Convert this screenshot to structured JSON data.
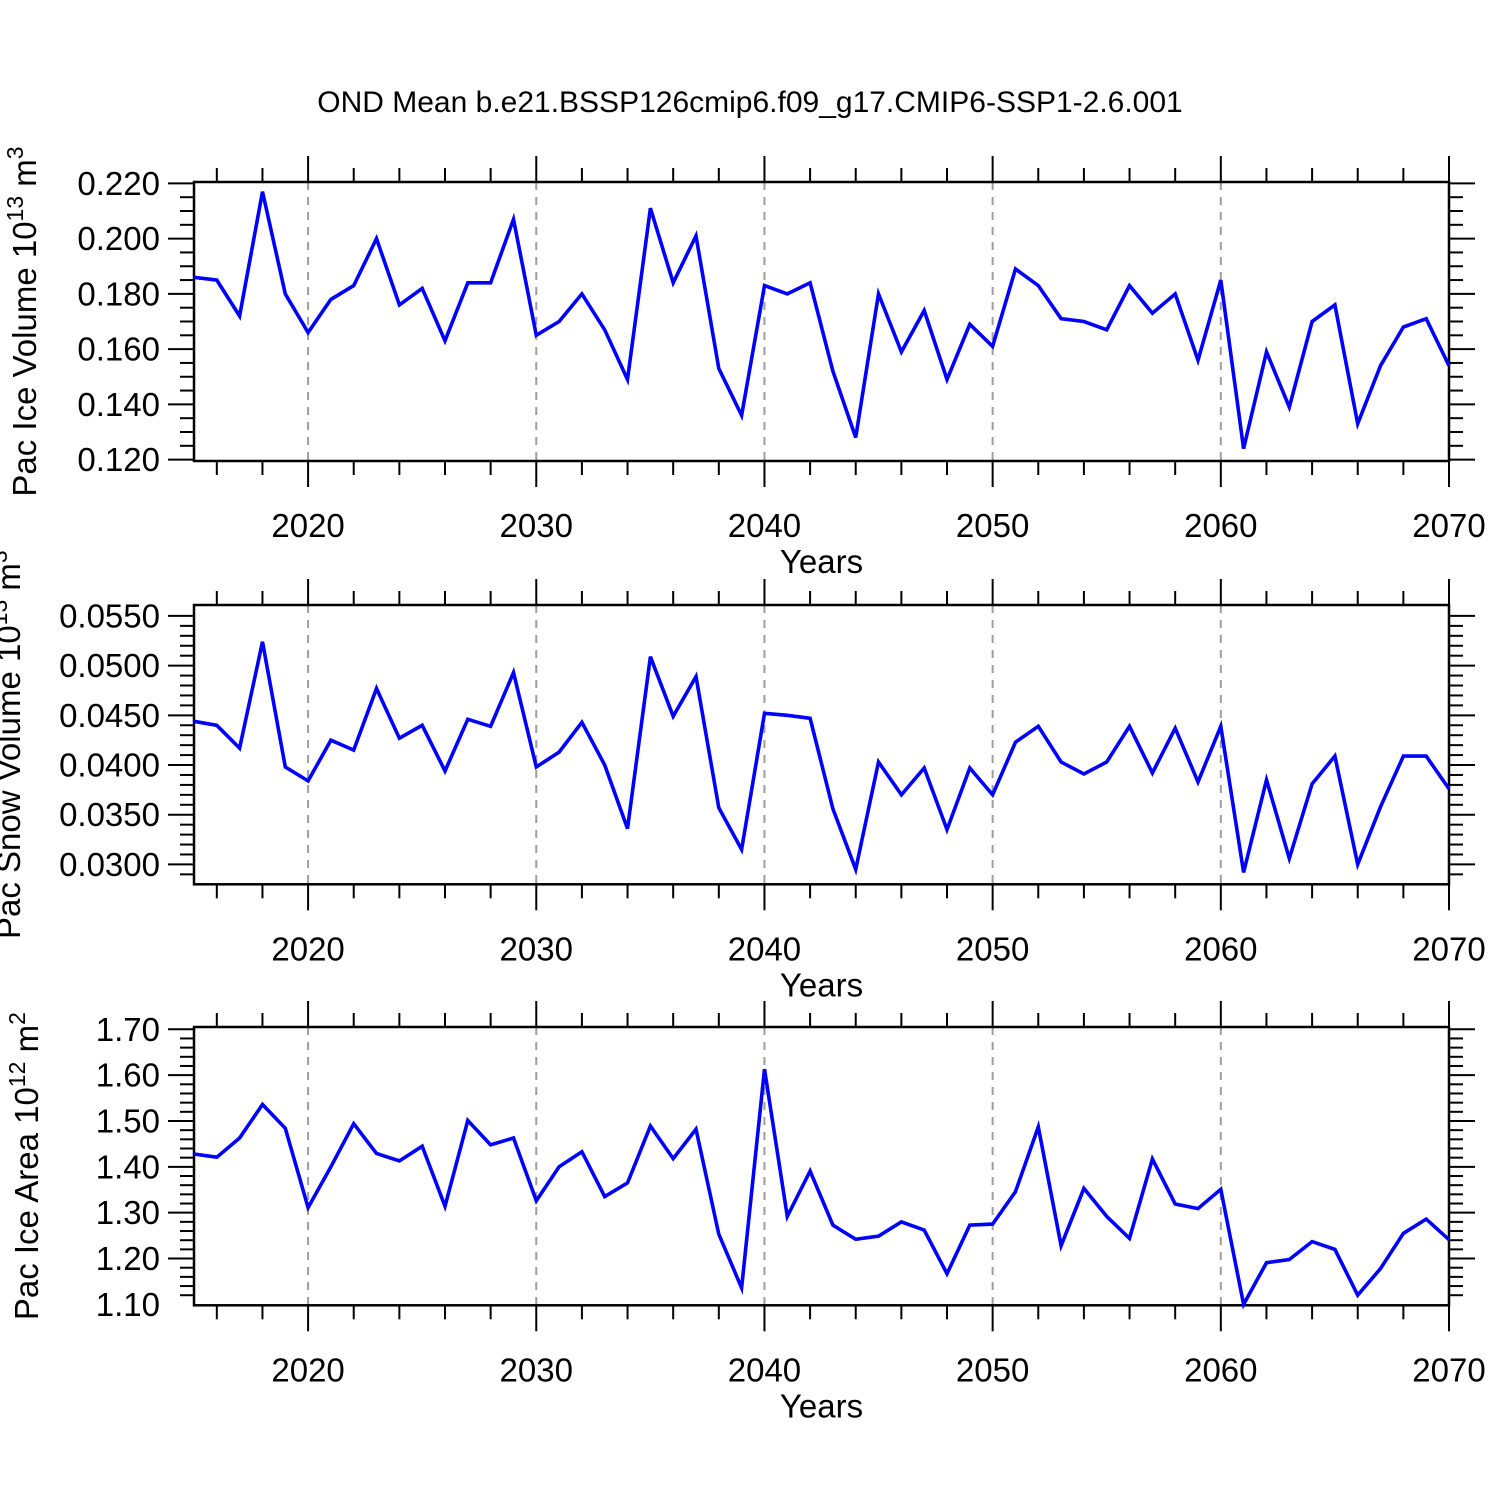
{
  "title": "OND Mean b.e21.BSSP126cmip6.f09_g17.CMIP6-SSP1-2.6.001",
  "colors": {
    "line": "#0000ff",
    "grid": "#9e9e9e",
    "frame": "#000000",
    "background": "#ffffff"
  },
  "chart_data": {
    "type": "line",
    "figure_title": "OND Mean b.e21.BSSP126cmip6.f09_g17.CMIP6-SSP1-2.6.001",
    "xlabel": "Years",
    "xlim": [
      2015,
      2070
    ],
    "xticks": [
      2020,
      2030,
      2040,
      2050,
      2060,
      2070
    ],
    "xticklabels": [
      "2020",
      "2030",
      "2040",
      "2050",
      "2060",
      "2070"
    ],
    "x_minor_tick_step": 2,
    "grid_vlines": [
      2020,
      2030,
      2040,
      2050,
      2060
    ],
    "grid_style": "dashed-vertical",
    "legend": "none",
    "line_color": "#0000ff",
    "x": [
      2015,
      2016,
      2017,
      2018,
      2019,
      2020,
      2021,
      2022,
      2023,
      2024,
      2025,
      2026,
      2027,
      2028,
      2029,
      2030,
      2031,
      2032,
      2033,
      2034,
      2035,
      2036,
      2037,
      2038,
      2039,
      2040,
      2041,
      2042,
      2043,
      2044,
      2045,
      2046,
      2047,
      2048,
      2049,
      2050,
      2051,
      2052,
      2053,
      2054,
      2055,
      2056,
      2057,
      2058,
      2059,
      2060,
      2061,
      2062,
      2063,
      2064,
      2065,
      2066,
      2067,
      2068,
      2069,
      2070
    ],
    "panels": [
      {
        "name": "pac-ice-volume",
        "ylabel_text": "Pac Ice Volume 10^13 m^3",
        "ylabel_parts": [
          {
            "text": "Pac Ice Volume 10"
          },
          {
            "text": "13",
            "sup": true
          },
          {
            "text": " m"
          },
          {
            "text": "3",
            "sup": true
          }
        ],
        "ylim": [
          0.1195,
          0.2205
        ],
        "yticks": [
          0.12,
          0.14,
          0.16,
          0.18,
          0.2,
          0.22
        ],
        "yticklabels": [
          "0.120",
          "0.140",
          "0.160",
          "0.180",
          "0.200",
          "0.220"
        ],
        "y_minor_tick_step": 0.005,
        "values": [
          0.186,
          0.185,
          0.172,
          0.217,
          0.18,
          0.166,
          0.178,
          0.183,
          0.2,
          0.176,
          0.182,
          0.163,
          0.184,
          0.184,
          0.207,
          0.165,
          0.17,
          0.18,
          0.167,
          0.149,
          0.211,
          0.184,
          0.201,
          0.153,
          0.136,
          0.183,
          0.18,
          0.184,
          0.152,
          0.128,
          0.18,
          0.159,
          0.174,
          0.149,
          0.169,
          0.161,
          0.189,
          0.183,
          0.171,
          0.17,
          0.167,
          0.183,
          0.173,
          0.18,
          0.156,
          0.185,
          0.124,
          0.159,
          0.139,
          0.17,
          0.176,
          0.133,
          0.154,
          0.168,
          0.171,
          0.154
        ]
      },
      {
        "name": "pac-snow-volume",
        "ylabel_text": "Pac Snow Volume 10^13 m^3",
        "ylabel_parts": [
          {
            "text": "Pac Snow Volume 10"
          },
          {
            "text": "13",
            "sup": true
          },
          {
            "text": " m"
          },
          {
            "text": "3",
            "sup": true
          }
        ],
        "ylim": [
          0.028,
          0.0561
        ],
        "yticks": [
          0.03,
          0.035,
          0.04,
          0.045,
          0.05,
          0.055
        ],
        "yticklabels": [
          "0.0300",
          "0.0350",
          "0.0400",
          "0.0450",
          "0.0500",
          "0.0550"
        ],
        "y_minor_tick_step": 0.001,
        "values": [
          0.0444,
          0.044,
          0.0417,
          0.0524,
          0.0398,
          0.0384,
          0.0425,
          0.0415,
          0.0477,
          0.0427,
          0.044,
          0.0394,
          0.0446,
          0.0439,
          0.0493,
          0.0398,
          0.0413,
          0.0443,
          0.04,
          0.0336,
          0.0509,
          0.0449,
          0.0489,
          0.0357,
          0.0315,
          0.0452,
          0.045,
          0.0447,
          0.0356,
          0.0295,
          0.0403,
          0.037,
          0.0397,
          0.0335,
          0.0397,
          0.037,
          0.0423,
          0.0439,
          0.0403,
          0.0391,
          0.0403,
          0.0439,
          0.0392,
          0.0437,
          0.0383,
          0.0439,
          0.0292,
          0.0385,
          0.0306,
          0.0381,
          0.0409,
          0.03,
          0.0358,
          0.0409,
          0.0409,
          0.0376
        ]
      },
      {
        "name": "pac-ice-area",
        "ylabel_text": "Pac Ice Area 10^12 m^2",
        "ylabel_parts": [
          {
            "text": "Pac Ice Area 10"
          },
          {
            "text": "12",
            "sup": true
          },
          {
            "text": " m"
          },
          {
            "text": "2",
            "sup": true
          }
        ],
        "ylim": [
          1.098,
          1.705
        ],
        "yticks": [
          1.1,
          1.2,
          1.3,
          1.4,
          1.5,
          1.6,
          1.7
        ],
        "yticklabels": [
          "1.10",
          "1.20",
          "1.30",
          "1.40",
          "1.50",
          "1.60",
          "1.70"
        ],
        "y_minor_tick_step": 0.02,
        "values": [
          1.428,
          1.421,
          1.463,
          1.536,
          1.484,
          1.311,
          1.4,
          1.494,
          1.429,
          1.413,
          1.445,
          1.314,
          1.501,
          1.448,
          1.463,
          1.326,
          1.4,
          1.433,
          1.335,
          1.365,
          1.489,
          1.418,
          1.482,
          1.253,
          1.136,
          1.613,
          1.292,
          1.391,
          1.273,
          1.242,
          1.249,
          1.28,
          1.262,
          1.167,
          1.273,
          1.275,
          1.346,
          1.487,
          1.228,
          1.353,
          1.292,
          1.244,
          1.417,
          1.319,
          1.309,
          1.351,
          1.1,
          1.191,
          1.198,
          1.237,
          1.22,
          1.12,
          1.178,
          1.255,
          1.286,
          1.241
        ]
      }
    ]
  }
}
